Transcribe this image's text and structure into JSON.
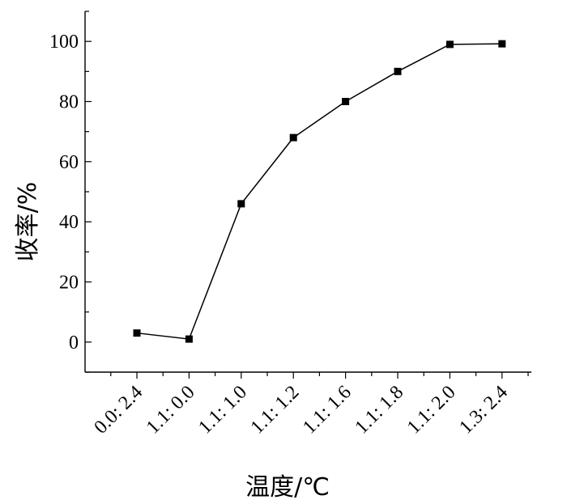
{
  "chart_data": {
    "type": "line",
    "title": "",
    "xlabel": "温度/℃",
    "ylabel": "收率/%",
    "categories": [
      "0.0: 2.4",
      "1.1: 0.0",
      "1.1: 1.0",
      "1.1: 1.2",
      "1.1: 1.6",
      "1.1: 1.8",
      "1.1: 2.0",
      "1.3: 2.4"
    ],
    "series": [
      {
        "values": [
          3,
          1,
          46,
          68,
          80,
          90,
          99,
          99.2
        ]
      }
    ],
    "ylim": [
      -10,
      110
    ],
    "yticks": [
      0,
      20,
      40,
      60,
      80,
      100
    ],
    "grid": false,
    "legend": "none",
    "line_color": "#000000",
    "marker": "square"
  }
}
